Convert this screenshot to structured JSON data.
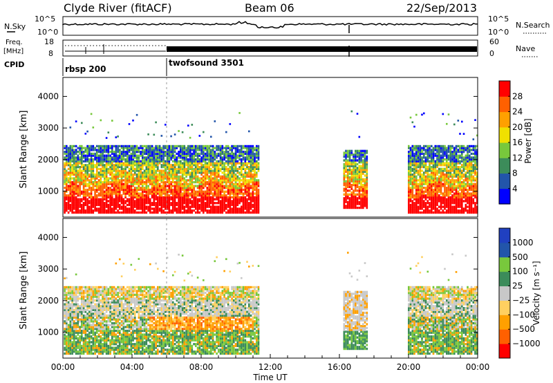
{
  "header": {
    "station": "Clyde River (fitACF)",
    "beam": "Beam 06",
    "date": "22/Sep/2013"
  },
  "noise_panel": {
    "left_label": "N.Sky",
    "left_ticks": [
      "10^5",
      "10^0"
    ],
    "right_label": "N.Search",
    "right_ticks": [
      "10^5",
      "10^0"
    ]
  },
  "freq_panel": {
    "left_label_line1": "Freq.",
    "left_label_line2": "[MHz]",
    "left_ticks": [
      "18",
      "8"
    ],
    "right_label": "Nave",
    "right_ticks": [
      "60",
      "0"
    ]
  },
  "cpid_panel": {
    "label": "CPID",
    "programs": [
      {
        "name": "rbsp 200",
        "start_hour": 0
      },
      {
        "name": "twofsound 3501",
        "start_hour": 6
      }
    ]
  },
  "x_axis": {
    "label": "Time UT",
    "ticks": [
      "00:00",
      "04:00",
      "08:00",
      "12:00",
      "16:00",
      "20:00",
      "00:00"
    ],
    "range_hours": [
      0,
      24
    ]
  },
  "chart_data": [
    {
      "type": "heatmap",
      "title": "",
      "ylabel": "Slant Range [km]",
      "yticks": [
        "1000",
        "2000",
        "3000",
        "4000"
      ],
      "ylim": [
        180,
        4600
      ],
      "colorbar": {
        "label": "Power [dB]",
        "ticks": [
          "4",
          "8",
          "12",
          "16",
          "20",
          "24",
          "28"
        ],
        "range": [
          0,
          32
        ],
        "colors": [
          "#0000ff",
          "#2255aa",
          "#3c8c5a",
          "#78c83c",
          "#f0e000",
          "#ffa000",
          "#ff6000",
          "#ff0000"
        ]
      },
      "data_windows_hours": [
        [
          0,
          11.3
        ],
        [
          16.2,
          17.6
        ],
        [
          19.9,
          24
        ]
      ]
    },
    {
      "type": "heatmap",
      "title": "",
      "ylabel": "Slant Range [km]",
      "yticks": [
        "1000",
        "2000",
        "3000",
        "4000"
      ],
      "ylim": [
        180,
        4600
      ],
      "colorbar": {
        "label": "Velocity [m s⁻¹]",
        "ticks": [
          "1000",
          "500",
          "100",
          "25",
          "−25",
          "−100",
          "−500",
          "−1000"
        ],
        "range": [
          -1200,
          1200
        ],
        "colors": [
          "#ff0000",
          "#ff6000",
          "#ffa000",
          "#ffd060",
          "#c8c8c8",
          "#3c8c5a",
          "#78c83c",
          "#2255aa",
          "#2040c0"
        ]
      },
      "data_windows_hours": [
        [
          0,
          11.3
        ],
        [
          16.2,
          17.6
        ],
        [
          19.9,
          24
        ]
      ]
    }
  ]
}
